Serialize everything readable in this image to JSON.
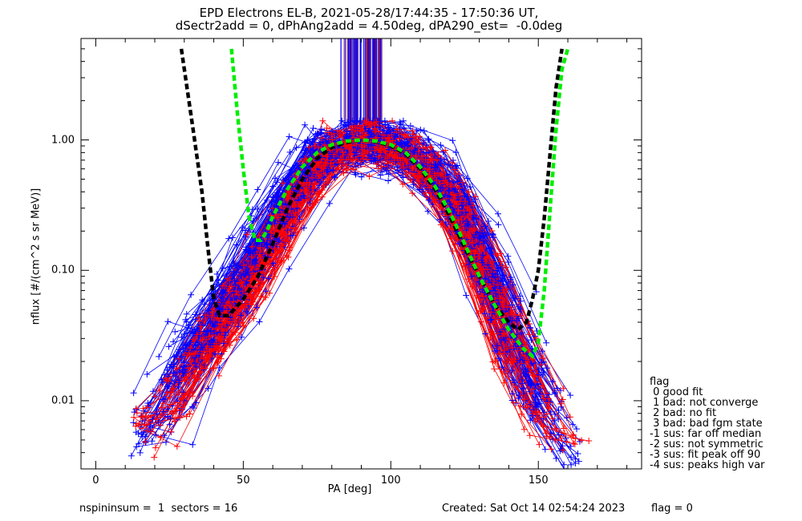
{
  "title_line1": "EPD Electrons EL-B, 2021-05-28/17:44:35 - 17:50:36 UT,",
  "title_line2": "dSectr2add = 0, dPhAng2add = 4.50deg, dPA290_est=  -0.0deg",
  "footer": {
    "left": "nspininsum =  1  sectors = 16",
    "created": "Created: Sat Oct 14 02:54:24 2023",
    "flag": "flag = 0"
  },
  "legend": {
    "title": "flag",
    "items": [
      " 0 good fit",
      " 1 bad: not converge",
      " 2 bad: no fit",
      " 3 bad: bad fgm state",
      "-1 sus: far off median",
      "-2 sus: not symmetric",
      "-3 sus: fit peak off 90",
      "-4 sus: peaks high var"
    ]
  },
  "colors": {
    "series_blue": "#0000ff",
    "series_red": "#ff0000",
    "fit_black": "#000000",
    "fit_green": "#00ee00",
    "spikes_maroon": "#880033"
  },
  "chart_data": {
    "type": "line",
    "xlabel": "PA [deg]",
    "ylabel": "nflux [#/(cm^2 s sr MeV)]",
    "xlim": [
      -5,
      185
    ],
    "ylim": [
      0.003,
      6
    ],
    "yscale": "log",
    "xticks": [
      0,
      50,
      100,
      150
    ],
    "yticks": [
      0.01,
      0.1,
      1.0
    ],
    "ytick_labels": [
      "0.01",
      "0.10",
      "1.00"
    ],
    "grid": false,
    "series": [
      {
        "color": "blue",
        "style": "thin lines with + markers, many overlapping spectra",
        "x": [
          15,
          22,
          30,
          38,
          45,
          52,
          60,
          68,
          76,
          84,
          92,
          100,
          108,
          116,
          124,
          132,
          140,
          148,
          156,
          164
        ],
        "y": [
          0.006,
          0.01,
          0.02,
          0.035,
          0.06,
          0.11,
          0.22,
          0.45,
          0.8,
          0.95,
          1.0,
          0.95,
          0.8,
          0.55,
          0.3,
          0.12,
          0.04,
          0.015,
          0.008,
          0.004
        ]
      },
      {
        "color": "red",
        "style": "thin lines with + markers, many overlapping spectra",
        "x": [
          20,
          28,
          36,
          44,
          52,
          60,
          68,
          76,
          84,
          92,
          100,
          108,
          116,
          124,
          132,
          140,
          148,
          156,
          164
        ],
        "y": [
          0.007,
          0.012,
          0.022,
          0.04,
          0.08,
          0.16,
          0.35,
          0.7,
          0.9,
          1.0,
          0.9,
          0.75,
          0.5,
          0.25,
          0.09,
          0.03,
          0.012,
          0.006,
          0.005
        ]
      },
      {
        "color": "black",
        "style": "thick dashed fit curve",
        "x": [
          29,
          33,
          36,
          38,
          40,
          42,
          45,
          50,
          55,
          60,
          65,
          70,
          75,
          80,
          85,
          90,
          95,
          100,
          105,
          110,
          115,
          120,
          125,
          130,
          135,
          140,
          143,
          146,
          148,
          150,
          152,
          154,
          156,
          158
        ],
        "y": [
          5,
          1.2,
          0.4,
          0.15,
          0.06,
          0.045,
          0.045,
          0.06,
          0.09,
          0.16,
          0.3,
          0.5,
          0.72,
          0.88,
          0.96,
          1.0,
          0.97,
          0.9,
          0.78,
          0.6,
          0.42,
          0.26,
          0.15,
          0.09,
          0.055,
          0.04,
          0.035,
          0.04,
          0.06,
          0.1,
          0.25,
          0.8,
          2.5,
          5
        ]
      },
      {
        "color": "green",
        "style": "thick dashed fit curve",
        "x": [
          46,
          48,
          50,
          52,
          54,
          56,
          58,
          60,
          65,
          70,
          75,
          80,
          85,
          90,
          95,
          100,
          105,
          110,
          115,
          120,
          125,
          130,
          135,
          140,
          145,
          148,
          150,
          152,
          154,
          156,
          158,
          160
        ],
        "y": [
          5,
          1.6,
          0.6,
          0.25,
          0.17,
          0.17,
          0.2,
          0.26,
          0.42,
          0.62,
          0.8,
          0.92,
          0.98,
          1.0,
          0.98,
          0.92,
          0.8,
          0.62,
          0.44,
          0.28,
          0.16,
          0.09,
          0.055,
          0.035,
          0.025,
          0.022,
          0.028,
          0.07,
          0.3,
          1.2,
          3.5,
          5
        ]
      }
    ]
  }
}
